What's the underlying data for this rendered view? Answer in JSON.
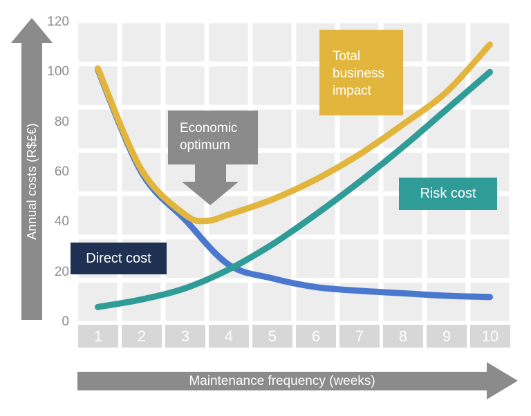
{
  "axes": {
    "y_label": "Annual costs (R$£€)",
    "x_label": "Maintenance frequency (weeks)"
  },
  "labels": {
    "total_impact": {
      "lines": [
        "Total",
        "business",
        "impact"
      ]
    },
    "economic_optimum": {
      "lines": [
        "Economic",
        "optimum"
      ]
    },
    "direct_cost": {
      "text": "Direct cost"
    },
    "risk_cost": {
      "text": "Risk cost"
    }
  },
  "colors": {
    "yellow": "#E2B63C",
    "blue": "#4A78CE",
    "teal": "#2F9C97",
    "navy": "#1E3152",
    "gray": "#8B8B8B",
    "cell": "#EDEDED",
    "tick_box": "#D7D7D7",
    "tick_text": "#8C8C8C"
  },
  "chart_data": {
    "type": "line",
    "title": "",
    "xlabel": "Maintenance frequency (weeks)",
    "ylabel": "Annual costs (R$£€)",
    "x_ticks": [
      1,
      2,
      3,
      4,
      5,
      6,
      7,
      8,
      9,
      10
    ],
    "y_ticks": [
      0,
      20,
      40,
      60,
      80,
      100,
      120
    ],
    "ylim": [
      0,
      120
    ],
    "grid": true,
    "legend_position": "inline-callout-boxes",
    "series": [
      {
        "name": "Direct cost",
        "color": "#4A78CE",
        "x": [
          1,
          2,
          3,
          4,
          5,
          6,
          7,
          8,
          9,
          10
        ],
        "values": [
          101,
          60,
          41,
          23,
          17.5,
          14,
          12.5,
          11.5,
          10.5,
          10
        ]
      },
      {
        "name": "Risk cost",
        "color": "#2F9C97",
        "x": [
          1,
          2,
          3,
          4,
          5,
          6,
          7,
          8,
          9,
          10
        ],
        "values": [
          6,
          9,
          13.5,
          21,
          31,
          43,
          56,
          70,
          85,
          100
        ]
      },
      {
        "name": "Total business impact",
        "color": "#E2B63C",
        "x": [
          1,
          2,
          3,
          3.5,
          4,
          5,
          6,
          7,
          8,
          9,
          10
        ],
        "values": [
          101.5,
          61,
          43,
          40.5,
          43,
          49,
          57,
          67,
          79,
          92,
          111
        ]
      }
    ],
    "annotations": [
      {
        "text": "Economic optimum",
        "points_to": {
          "x": 3.6,
          "value": 40.5
        }
      }
    ]
  }
}
